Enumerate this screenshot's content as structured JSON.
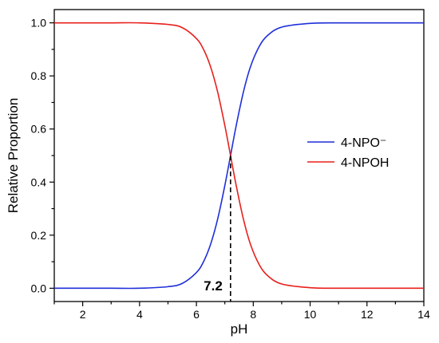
{
  "chart_data": {
    "type": "line",
    "xlabel": "pH",
    "ylabel": "Relative Proportion",
    "xlim": [
      1,
      14
    ],
    "ylim": [
      0,
      1.0
    ],
    "x_ticks": [
      2,
      4,
      6,
      8,
      10,
      12,
      14
    ],
    "y_ticks": [
      0.0,
      0.2,
      0.4,
      0.6,
      0.8,
      1.0
    ],
    "x_tick_labels": [
      "2",
      "4",
      "6",
      "8",
      "10",
      "12",
      "14"
    ],
    "y_tick_labels": [
      "0.0",
      "0.2",
      "0.4",
      "0.6",
      "0.8",
      "1.0"
    ],
    "grid": false,
    "legend_position": "center-right",
    "series": [
      {
        "name": "4-NPO⁻",
        "color": "#1f2fd8",
        "x": [
          1,
          2,
          3,
          4,
          5,
          5.5,
          6,
          6.25,
          6.5,
          6.75,
          7,
          7.2,
          7.4,
          7.65,
          7.9,
          8.2,
          8.5,
          9,
          10,
          11,
          12,
          13,
          14
        ],
        "y": [
          0.0,
          0.0,
          0.0,
          0.0,
          0.006,
          0.018,
          0.059,
          0.1,
          0.166,
          0.262,
          0.387,
          0.5,
          0.613,
          0.738,
          0.834,
          0.909,
          0.952,
          0.984,
          0.998,
          1.0,
          1.0,
          1.0,
          1.0
        ]
      },
      {
        "name": "4-NPOH",
        "color": "#e8201c",
        "x": [
          1,
          2,
          3,
          4,
          5,
          5.5,
          6,
          6.25,
          6.5,
          6.75,
          7,
          7.2,
          7.4,
          7.65,
          7.9,
          8.2,
          8.5,
          9,
          10,
          11,
          12,
          13,
          14
        ],
        "y": [
          1.0,
          1.0,
          1.0,
          1.0,
          0.994,
          0.982,
          0.941,
          0.9,
          0.834,
          0.738,
          0.613,
          0.5,
          0.387,
          0.262,
          0.166,
          0.091,
          0.048,
          0.016,
          0.002,
          0.0,
          0.0,
          0.0,
          0.0
        ]
      }
    ],
    "annotations": [
      {
        "text": "7.2",
        "x": 7.2,
        "y": 0.5,
        "style": "dashed-vertical-line-to-axis"
      }
    ]
  }
}
